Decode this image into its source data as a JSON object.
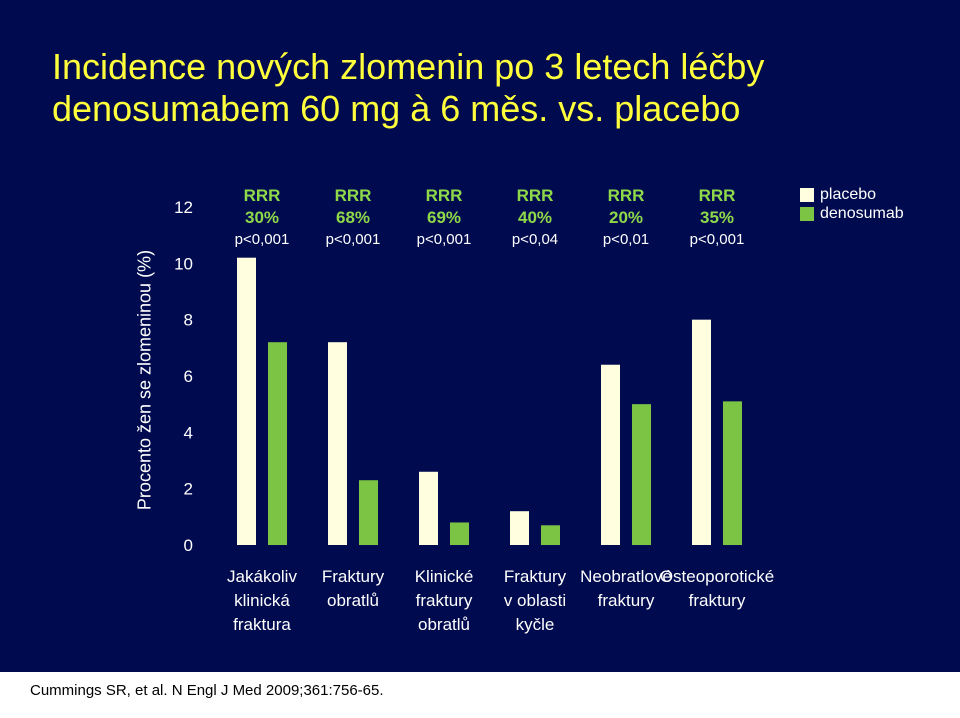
{
  "title_lines": [
    "Incidence nových zlomenin po 3 letech léčby",
    "denosumabem 60 mg à 6 měs. vs. placebo"
  ],
  "citation": "Cummings SR, et al. N Engl J Med 2009;361:756-65.",
  "colors": {
    "background": "#000a4e",
    "title": "#ffff3c",
    "placebo": "#ffffe0",
    "denosumab": "#7cc444",
    "rrr_text": "#8ed94a"
  },
  "chart_data": {
    "type": "bar",
    "title": "Incidence nových zlomenin po 3 letech léčby denosumabem 60 mg à 6 měs. vs. placebo",
    "ylabel": "Procento žen se zlomeninou (%)",
    "xlabel": "",
    "ylim": [
      0,
      12
    ],
    "yticks": [
      0,
      2,
      4,
      6,
      8,
      10,
      12
    ],
    "grid": false,
    "legend_position": "top-right",
    "categories": [
      [
        "Jakákoliv",
        "klinická",
        "fraktura"
      ],
      [
        "Fraktury",
        "obratlů"
      ],
      [
        "Klinické",
        "fraktury",
        "obratlů"
      ],
      [
        "Fraktury",
        "v oblasti",
        "kyčle"
      ],
      [
        "Neobratlové",
        "fraktury"
      ],
      [
        "Osteoporotické",
        "fraktury"
      ]
    ],
    "series": [
      {
        "name": "placebo",
        "values": [
          10.2,
          7.2,
          2.6,
          1.2,
          6.4,
          8.0
        ]
      },
      {
        "name": "denosumab",
        "values": [
          7.2,
          2.3,
          0.8,
          0.7,
          5.0,
          5.1
        ]
      }
    ],
    "annotations": [
      {
        "rrr": "RRR",
        "pct": "30%",
        "p": "p<0,001"
      },
      {
        "rrr": "RRR",
        "pct": "68%",
        "p": "p<0,001"
      },
      {
        "rrr": "RRR",
        "pct": "69%",
        "p": "p<0,001"
      },
      {
        "rrr": "RRR",
        "pct": "40%",
        "p": "p<0,04"
      },
      {
        "rrr": "RRR",
        "pct": "20%",
        "p": "p<0,01"
      },
      {
        "rrr": "RRR",
        "pct": "35%",
        "p": "p<0,001"
      }
    ]
  }
}
